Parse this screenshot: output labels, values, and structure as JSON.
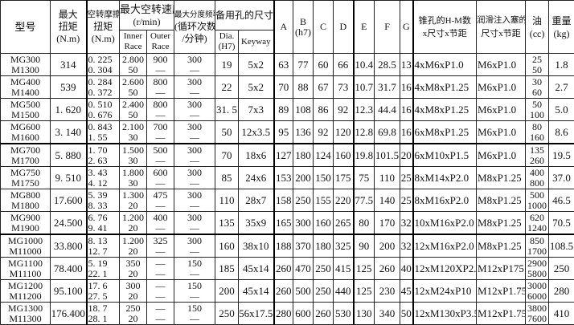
{
  "header": {
    "model": "型号",
    "max_torque": [
      "最大",
      "扭矩",
      "(N.m)"
    ],
    "idle_torque": [
      "空转摩擦",
      "扭矩",
      "(N.m)"
    ],
    "max_speed": [
      "最大空转速度",
      "(r/min)"
    ],
    "inner_race": [
      "Inner",
      "Race"
    ],
    "outer_race": [
      "Outer",
      "Race"
    ],
    "max_index": [
      "最大分度频率",
      "(循环次数",
      "/分钟)"
    ],
    "bore": "备用孔的尺寸",
    "dia": [
      "Dia.",
      "(H7)"
    ],
    "keyway": "Keyway",
    "A": "A",
    "B": [
      "B",
      "(h7)"
    ],
    "C": "C",
    "D": "D",
    "E": "E",
    "F": "F",
    "G": "G",
    "tap": [
      "锥孔的H-M数",
      "x尺寸x节距"
    ],
    "lube": [
      "润滑注入塞的",
      "尺寸x节距"
    ],
    "oil": [
      "油",
      "(cc)"
    ],
    "weight": [
      "重量",
      "(kg)"
    ]
  },
  "rows": [
    {
      "model": [
        "MG300",
        "M1300"
      ],
      "torque": "314",
      "idle": [
        "0. 225",
        "0. 304"
      ],
      "inner": [
        "2.800",
        "50"
      ],
      "outer": [
        "900",
        "—"
      ],
      "index": [
        "300",
        "—"
      ],
      "dia": "19",
      "keyway": "5x2",
      "A": "63",
      "B": "77",
      "C": "60",
      "D": "66",
      "E": "10.4",
      "F": "28.5",
      "G": "13",
      "tap": "4xM6xP1.0",
      "lube": "M6xP1.0",
      "oil": [
        "25",
        "50"
      ],
      "weight": "1.8"
    },
    {
      "model": [
        "MG400",
        "M1400"
      ],
      "torque": "539",
      "idle": [
        "0. 284",
        "0. 372"
      ],
      "inner": [
        "2.600",
        "50"
      ],
      "outer": [
        "800",
        "—"
      ],
      "index": [
        "300",
        "—"
      ],
      "dia": "22",
      "keyway": "5x2",
      "A": "70",
      "B": "88",
      "C": "67",
      "D": "73",
      "E": "10.7",
      "F": "31.7",
      "G": "16",
      "tap": "4xM8xP1.25",
      "lube": "M6xP1.0",
      "oil": [
        "30",
        "60"
      ],
      "weight": "2.7"
    },
    {
      "model": [
        "MG500",
        "M1500"
      ],
      "torque": "1. 620",
      "idle": [
        "0. 510",
        "0. 676"
      ],
      "inner": [
        "2.400",
        "50"
      ],
      "outer": [
        "800",
        "—"
      ],
      "index": [
        "300",
        "—"
      ],
      "dia": "31. 5",
      "keyway": "7x3",
      "A": "89",
      "B": "108",
      "C": "86",
      "D": "92",
      "E": "12.3",
      "F": "44.4",
      "G": "16",
      "tap": "4xM8xP1.25",
      "lube": "M6xP1.0",
      "oil": [
        "50",
        "100"
      ],
      "weight": "5.0"
    },
    {
      "model": [
        "MG600",
        "M1600"
      ],
      "torque": "3. 140",
      "idle": [
        "0. 843",
        "1. 55"
      ],
      "inner": [
        "2.100",
        "30"
      ],
      "outer": [
        "700",
        "—"
      ],
      "index": [
        "300",
        "—"
      ],
      "dia": "50",
      "keyway": "12x3.5",
      "A": "95",
      "B": "136",
      "C": "92",
      "D": "120",
      "E": "12.8",
      "F": "69.8",
      "G": "16",
      "tap": "6xM8xP1.25",
      "lube": "M6xP1.0",
      "oil": [
        "80",
        "160"
      ],
      "weight": "8.6"
    },
    {
      "model": [
        "MG700",
        "M1700"
      ],
      "torque": "5. 880",
      "idle": [
        "1. 70",
        "2. 63"
      ],
      "inner": [
        "1.500",
        "30"
      ],
      "outer": [
        "500",
        "—"
      ],
      "index": [
        "300",
        "—"
      ],
      "dia": "70",
      "keyway": "18x6",
      "A": "127",
      "B": "180",
      "C": "124",
      "D": "160",
      "E": "19.8",
      "F": "101.5",
      "G": "20",
      "tap": "6xM10xP1.5",
      "lube": "M6xP1.0",
      "oil": [
        "135",
        "260"
      ],
      "weight": "19.5"
    },
    {
      "model": [
        "MG750",
        "M1750"
      ],
      "torque": "9. 510",
      "idle": [
        "3. 43",
        "4. 12"
      ],
      "inner": [
        "1.800",
        "30"
      ],
      "outer": [
        "600",
        "—"
      ],
      "index": [
        "300",
        "—"
      ],
      "dia": "85",
      "keyway": "24x6",
      "A": "153",
      "B": "200",
      "C": "150",
      "D": "175",
      "E": "75",
      "F": "110",
      "G": "25",
      "tap": "8xM14xP2.0",
      "lube": "M8xP1.25",
      "oil": [
        "400",
        "800"
      ],
      "weight": "37.0"
    },
    {
      "model": [
        "MG800",
        "M1800"
      ],
      "torque": "17.600",
      "idle": [
        "5. 39",
        "8. 33"
      ],
      "inner": [
        "1.300",
        "20"
      ],
      "outer": [
        "475",
        "—"
      ],
      "index": [
        "300",
        "—"
      ],
      "dia": "110",
      "keyway": "28x7",
      "A": "158",
      "B": "250",
      "C": "155",
      "D": "220",
      "E": "77.5",
      "F": "140",
      "G": "25",
      "tap": "8xM16xP2.0",
      "lube": "M8xP1.25",
      "oil": [
        "500",
        "1000"
      ],
      "weight": "46.5"
    },
    {
      "model": [
        "MG900",
        "M1900"
      ],
      "torque": "24.500",
      "idle": [
        "6. 76",
        "9. 41"
      ],
      "inner": [
        "1.200",
        "20"
      ],
      "outer": [
        "400",
        "—"
      ],
      "index": [
        "300",
        "—"
      ],
      "dia": "135",
      "keyway": "35x9",
      "A": "165",
      "B": "300",
      "C": "160",
      "D": "265",
      "E": "80",
      "F": "170",
      "G": "32",
      "tap": "10xM16xP2.0",
      "lube": "M8xP1.25",
      "oil": [
        "620",
        "1240"
      ],
      "weight": "70.5"
    },
    {
      "model": [
        "MG1000",
        "M11000"
      ],
      "torque": "33.800",
      "idle": [
        "8. 13",
        "12. 7"
      ],
      "inner": [
        "1.200",
        "20"
      ],
      "outer": [
        "325",
        "—"
      ],
      "index": [
        "300",
        "—"
      ],
      "dia": "160",
      "keyway": "38x10",
      "A": "188",
      "B": "370",
      "C": "180",
      "D": "325",
      "E": "90",
      "F": "200",
      "G": "32",
      "tap": "12xM16xP2.0",
      "lube": "M8xP1.25",
      "oil": [
        "850",
        "1700"
      ],
      "weight": "108.5"
    },
    {
      "model": [
        "MG1100",
        "M11100"
      ],
      "torque": "78.400",
      "idle": [
        "5. 19",
        "22. 1"
      ],
      "inner": [
        "350",
        "20"
      ],
      "outer": [
        "—",
        "—"
      ],
      "index": [
        "150",
        "—"
      ],
      "dia": "185",
      "keyway": "45x14",
      "A": "260",
      "B": "470",
      "C": "250",
      "D": "415",
      "E": "125",
      "F": "260",
      "G": "40",
      "tap": "12xM120XP2.5",
      "lube": "M12xP175",
      "oil": [
        "2900",
        "5800"
      ],
      "weight": "250"
    },
    {
      "model": [
        "MG1200",
        "M11200"
      ],
      "torque": "95.100",
      "idle": [
        "17. 6",
        "27. 5"
      ],
      "inner": [
        "300",
        "20"
      ],
      "outer": [
        "—",
        "—"
      ],
      "index": [
        "150",
        "—"
      ],
      "dia": "200",
      "keyway": "45x14",
      "A": "260",
      "B": "500",
      "C": "250",
      "D": "440",
      "E": "125",
      "F": "230",
      "G": "45",
      "tap": "12xM24xP10",
      "lube": "M12xP1.75",
      "oil": [
        "3000",
        "6000"
      ],
      "weight": "280"
    },
    {
      "model": [
        "MG1300",
        "M11300"
      ],
      "torque": "176.400",
      "idle": [
        "18. 7",
        "28. 1"
      ],
      "inner": [
        "250",
        "20"
      ],
      "outer": [
        "—",
        "—"
      ],
      "index": [
        "150",
        "—"
      ],
      "dia": "250",
      "keyway": "56x17.5",
      "A": "280",
      "B": "600",
      "C": "260",
      "D": "530",
      "E": "130",
      "F": "340",
      "G": "50",
      "tap": "12xM130xP3.5",
      "lube": "M12xP1.75",
      "oil": [
        "3800",
        "7600"
      ],
      "weight": "410"
    }
  ]
}
